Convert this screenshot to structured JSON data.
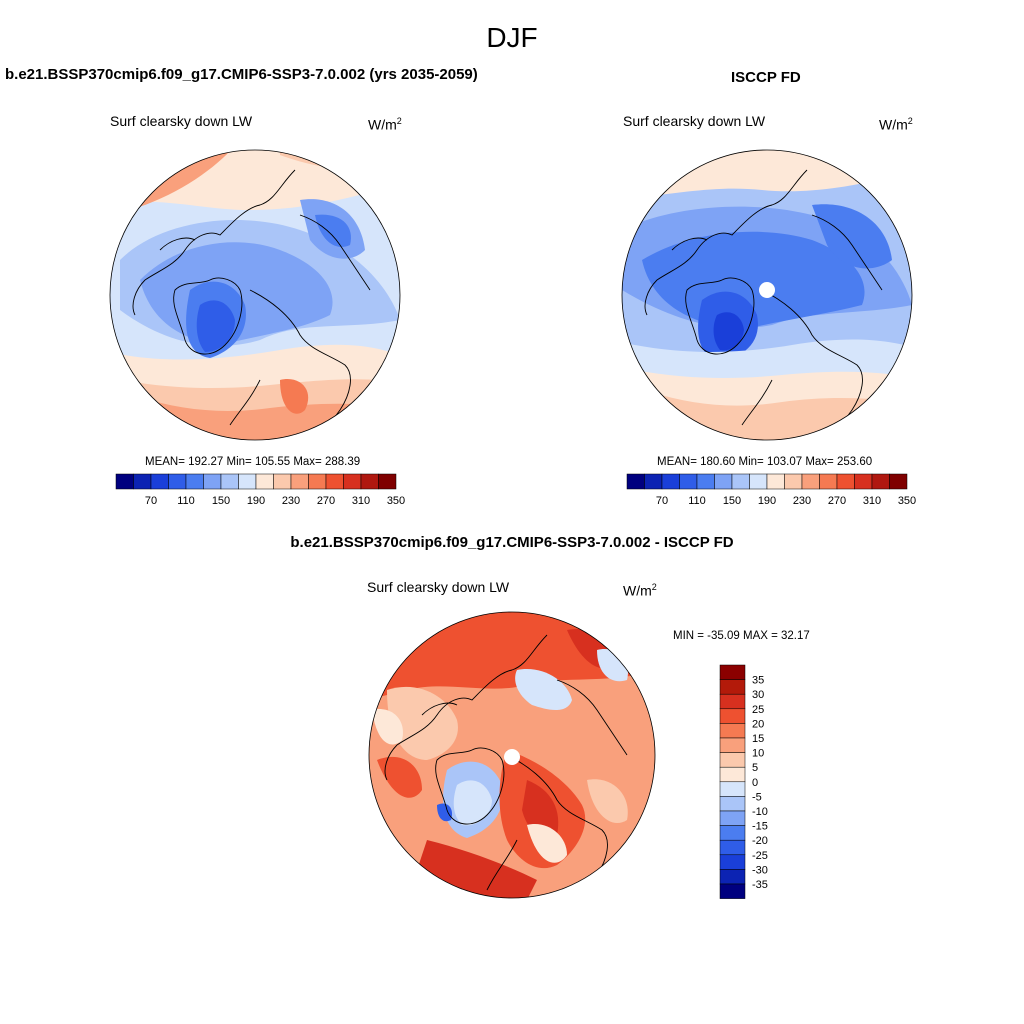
{
  "figure": {
    "season_title": "DJF"
  },
  "panels": {
    "model": {
      "heading": "b.e21.BSSP370cmip6.f09_g17.CMIP6-SSP3-7.0.002 (yrs 2035-2059)",
      "variable": "Surf clearsky down LW",
      "units": "W/m",
      "units_exp": "2",
      "stats": "MEAN= 192.27  Min= 105.55  Max= 288.39"
    },
    "obs": {
      "heading": "ISCCP FD",
      "variable": "Surf clearsky down LW",
      "units": "W/m",
      "units_exp": "2",
      "stats": "MEAN= 180.60  Min= 103.07  Max= 253.60"
    },
    "diff": {
      "heading": "b.e21.BSSP370cmip6.f09_g17.CMIP6-SSP3-7.0.002 - ISCCP FD",
      "variable": "Surf clearsky down LW",
      "units": "W/m",
      "units_exp": "2",
      "stats": "MIN = -35.09 MAX =  32.17"
    }
  },
  "colorbars": {
    "main": {
      "levels": [
        70,
        110,
        150,
        190,
        230,
        270,
        310,
        350
      ],
      "colors": [
        "#00007f",
        "#0c23b3",
        "#1a3fd9",
        "#2f5de8",
        "#4b7df0",
        "#7ea3f5",
        "#aac5f8",
        "#d6e5fb",
        "#fde8d8",
        "#fbc9ad",
        "#f9a07c",
        "#f57a52",
        "#ee5130",
        "#d7301f",
        "#b01810",
        "#7f0000"
      ]
    },
    "diff": {
      "levels": [
        35,
        30,
        25,
        20,
        15,
        10,
        5,
        0,
        -5,
        -10,
        -15,
        -20,
        -25,
        -30,
        -35
      ],
      "colors": [
        "#8b0000",
        "#b31a0a",
        "#d7301f",
        "#ee5130",
        "#f57a52",
        "#f9a07c",
        "#fbc9ad",
        "#fde8d8",
        "#d6e5fb",
        "#aac5f8",
        "#7ea3f5",
        "#4b7df0",
        "#2f5de8",
        "#1a3fd9",
        "#0c23b3",
        "#00007f"
      ]
    }
  }
}
